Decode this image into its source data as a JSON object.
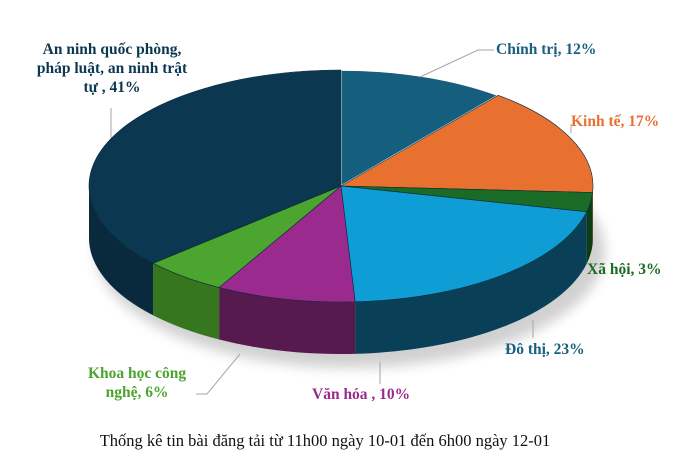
{
  "chart_data": {
    "type": "pie",
    "style": "3d",
    "title": "",
    "caption": "Thống kê tin bài đăng tải từ 11h00 ngày 10-01 đến 6h00 ngày 12-01",
    "slices": [
      {
        "name": "Chính trị",
        "value": 12,
        "label": "Chính trị, 12%",
        "color": "#155e7e",
        "side": "#0f4760",
        "text_color": "#1a5f80"
      },
      {
        "name": "Kinh tế",
        "value": 17,
        "label": "Kinh tế, 17%",
        "color": "#e87130",
        "side": "#b5531f",
        "text_color": "#e87130"
      },
      {
        "name": "Xã hội",
        "value": 3,
        "label": "Xã hội, 3%",
        "color": "#1a6b25",
        "side": "#0e3d14",
        "text_color": "#1b6b22"
      },
      {
        "name": "Đô thị",
        "value": 23,
        "label": "Đô thị, 23%",
        "color": "#0e9dd4",
        "side": "#093f57",
        "text_color": "#1a5f80"
      },
      {
        "name": "Văn hóa",
        "value": 10,
        "label": "Văn hóa , 10%",
        "color": "#9b2a8e",
        "side": "#561a4f",
        "text_color": "#9b2a8e"
      },
      {
        "name": "Khoa học công nghệ",
        "value": 6,
        "label_lines": [
          "Khoa học công",
          "nghệ, 6%"
        ],
        "color": "#4ba52e",
        "side": "#35761f",
        "text_color": "#4ba52e"
      },
      {
        "name": "An ninh quốc phòng, pháp luật, an ninh trật tự",
        "value": 41,
        "label_lines": [
          "An ninh quốc phòng,",
          "pháp luật, an ninh trật",
          "tự , 41%"
        ],
        "color": "#0b3850",
        "side": "#082a3c",
        "text_color": "#0b3850"
      }
    ]
  }
}
